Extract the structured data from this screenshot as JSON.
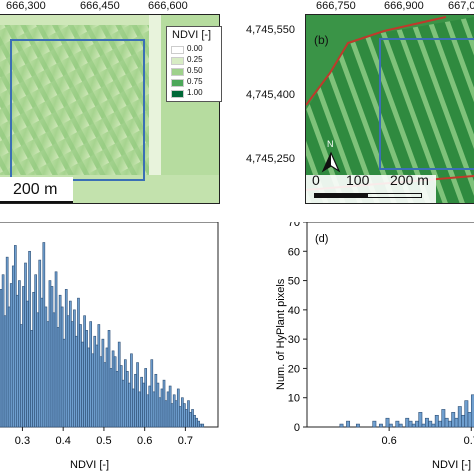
{
  "panel_a": {
    "x_ticks": [
      "666,300",
      "666,450",
      "666,600"
    ],
    "scalebar_label": "200 m",
    "legend": {
      "title": "NDVI [-]",
      "entries": [
        {
          "label": "0.00",
          "color": "#ffffff"
        },
        {
          "label": "0.25",
          "color": "#d7ecc4"
        },
        {
          "label": "0.50",
          "color": "#9fd18c"
        },
        {
          "label": "0.75",
          "color": "#4da85a"
        },
        {
          "label": "1.00",
          "color": "#006837"
        }
      ]
    }
  },
  "panel_b": {
    "panel_label": "(b)",
    "x_ticks": [
      "666,750",
      "666,900",
      "667,0"
    ],
    "y_ticks": [
      "4,745,550",
      "4,745,400",
      "4,745,250"
    ],
    "scalebar_labels": [
      "0",
      "100",
      "200 m"
    ],
    "north_label": "N"
  },
  "colors": {
    "bar_fill": "#6f9fcf",
    "bar_stroke": "#2e4f75",
    "boundary_red": "#c0392b",
    "aoi_blue": "#3b6fb5"
  },
  "chart_data": [
    {
      "type": "bar",
      "panel": "c",
      "xlabel": "NDVI [-]",
      "ylabel": "",
      "x_ticks": [
        "0.3",
        "0.4",
        "0.5",
        "0.6",
        "0.7"
      ],
      "xlim": [
        0.24,
        0.78
      ],
      "ylim": [
        0,
        70
      ],
      "bin_width": 0.005,
      "x_start": 0.24,
      "values": [
        44,
        47,
        52,
        38,
        58,
        41,
        49,
        55,
        62,
        45,
        50,
        35,
        48,
        56,
        43,
        60,
        33,
        46,
        52,
        39,
        57,
        44,
        63,
        41,
        36,
        50,
        48,
        39,
        53,
        34,
        45,
        41,
        30,
        47,
        38,
        43,
        36,
        40,
        31,
        44,
        35,
        29,
        38,
        33,
        27,
        36,
        25,
        31,
        28,
        35,
        24,
        30,
        22,
        27,
        33,
        20,
        26,
        24,
        19,
        29,
        21,
        16,
        23,
        19,
        15,
        25,
        13,
        18,
        22,
        12,
        17,
        15,
        20,
        11,
        14,
        23,
        12,
        18,
        15,
        10,
        13,
        16,
        9,
        12,
        14,
        8,
        11,
        9,
        13,
        7,
        10,
        8,
        6,
        9,
        5,
        6,
        4,
        3,
        2,
        1,
        1,
        0,
        0,
        0,
        0,
        0,
        0,
        0
      ]
    },
    {
      "type": "bar",
      "panel": "d",
      "panel_label": "(d)",
      "xlabel": "NDVI [-]",
      "ylabel": "Num. of HyPlant pixels",
      "x_ticks": [
        "0.6",
        "0.7"
      ],
      "y_ticks": [
        "0",
        "10",
        "20",
        "30",
        "40",
        "50",
        "60",
        "70"
      ],
      "xlim": [
        0.5,
        0.78
      ],
      "ylim": [
        0,
        70
      ],
      "bin_width": 0.004,
      "x_start": 0.5,
      "values": [
        0,
        0,
        0,
        0,
        0,
        0,
        0,
        0,
        0,
        0,
        1,
        0,
        2,
        0,
        0,
        1,
        0,
        0,
        0,
        0,
        2,
        0,
        1,
        0,
        3,
        1,
        0,
        2,
        1,
        0,
        3,
        2,
        1,
        2,
        5,
        1,
        3,
        2,
        1,
        4,
        2,
        6,
        3,
        2,
        5,
        3,
        7,
        4,
        9,
        5,
        11,
        8
      ]
    }
  ]
}
